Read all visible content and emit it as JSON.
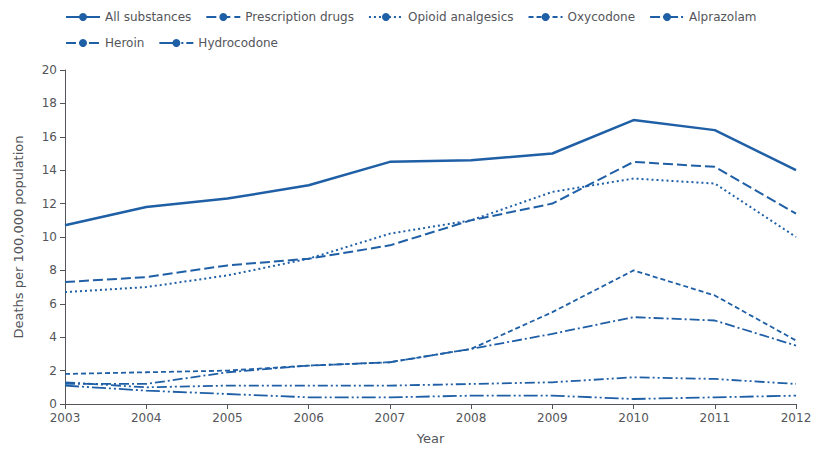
{
  "chart_data": {
    "type": "line",
    "x": [
      2003,
      2004,
      2005,
      2006,
      2007,
      2008,
      2009,
      2010,
      2011,
      2012
    ],
    "xlim": [
      2003,
      2012
    ],
    "xticks": [
      2003,
      2004,
      2005,
      2006,
      2007,
      2008,
      2009,
      2010,
      2011,
      2012
    ],
    "ylim": [
      0,
      20
    ],
    "yticks": [
      0,
      2,
      4,
      6,
      8,
      10,
      12,
      14,
      16,
      18,
      20
    ],
    "xlabel": "Year",
    "ylabel": "Deaths per 100,000 population",
    "grid": false,
    "legend": "upper left",
    "series": [
      {
        "name": "All substances",
        "color": "#1f5fa6",
        "line_style": "solid",
        "values": [
          10.7,
          11.8,
          12.3,
          13.1,
          14.5,
          14.6,
          15.0,
          17.0,
          16.4,
          14.0
        ]
      },
      {
        "name": "Prescription drugs",
        "color": "#1f5fa6",
        "line_style": "dashed",
        "values": [
          7.3,
          7.6,
          8.3,
          8.7,
          9.5,
          11.0,
          12.0,
          14.5,
          14.2,
          11.4
        ]
      },
      {
        "name": "Opioid analgesics",
        "color": "#1f5fa6",
        "line_style": "dotted",
        "values": [
          6.7,
          7.0,
          7.7,
          8.7,
          10.2,
          11.0,
          12.7,
          13.5,
          13.2,
          10.0
        ]
      },
      {
        "name": "Oxycodone",
        "color": "#1f5fa6",
        "line_style": "short_dash",
        "values": [
          1.8,
          1.9,
          2.0,
          2.3,
          2.5,
          3.3,
          5.5,
          8.0,
          6.5,
          3.8
        ]
      },
      {
        "name": "Alprazolam",
        "color": "#1f5fa6",
        "line_style": "dash_dot",
        "values": [
          1.2,
          1.2,
          1.9,
          2.3,
          2.5,
          3.3,
          4.2,
          5.2,
          5.0,
          3.5
        ]
      },
      {
        "name": "Heroin",
        "color": "#1f5fa6",
        "line_style": "dash_dot_dot",
        "values": [
          1.3,
          1.0,
          1.1,
          1.1,
          1.1,
          1.2,
          1.3,
          1.6,
          1.5,
          1.2
        ]
      },
      {
        "name": "Hydrocodone",
        "color": "#1f5fa6",
        "line_style": "long_dash_dot_dot",
        "values": [
          1.1,
          0.8,
          0.6,
          0.4,
          0.4,
          0.5,
          0.5,
          0.3,
          0.4,
          0.5
        ]
      }
    ]
  }
}
